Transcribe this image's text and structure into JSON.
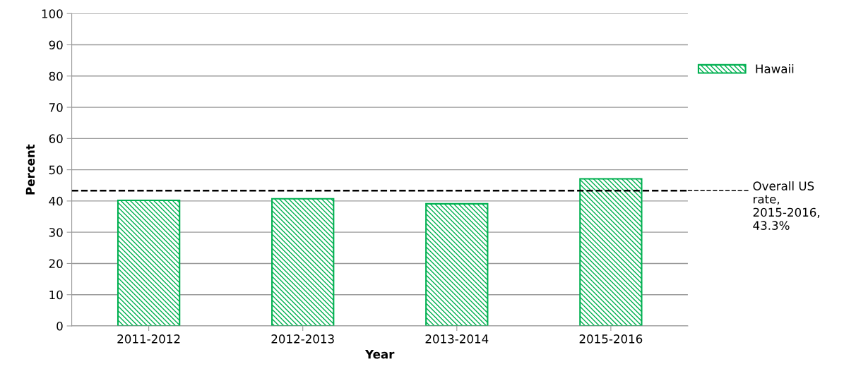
{
  "chart_data": {
    "type": "bar",
    "xlabel": "Year",
    "ylabel": "Percent",
    "categories": [
      "2011-2012",
      "2012-2013",
      "2013-2014",
      "2015-2016"
    ],
    "series": [
      {
        "name": "Hawaii",
        "color": "#00b050",
        "values": [
          40.2,
          40.7,
          39.1,
          47.1
        ]
      }
    ],
    "ylim": [
      0,
      100
    ],
    "yticks": [
      0,
      10,
      20,
      30,
      40,
      50,
      60,
      70,
      80,
      90,
      100
    ],
    "grid": "y",
    "legend": "right",
    "ref_lines": [
      {
        "axis": "y",
        "value": 43.3,
        "label": "Overall US rate, 2015-2016, 43.3%",
        "color": "#000000",
        "line_style": "dashed"
      }
    ]
  }
}
